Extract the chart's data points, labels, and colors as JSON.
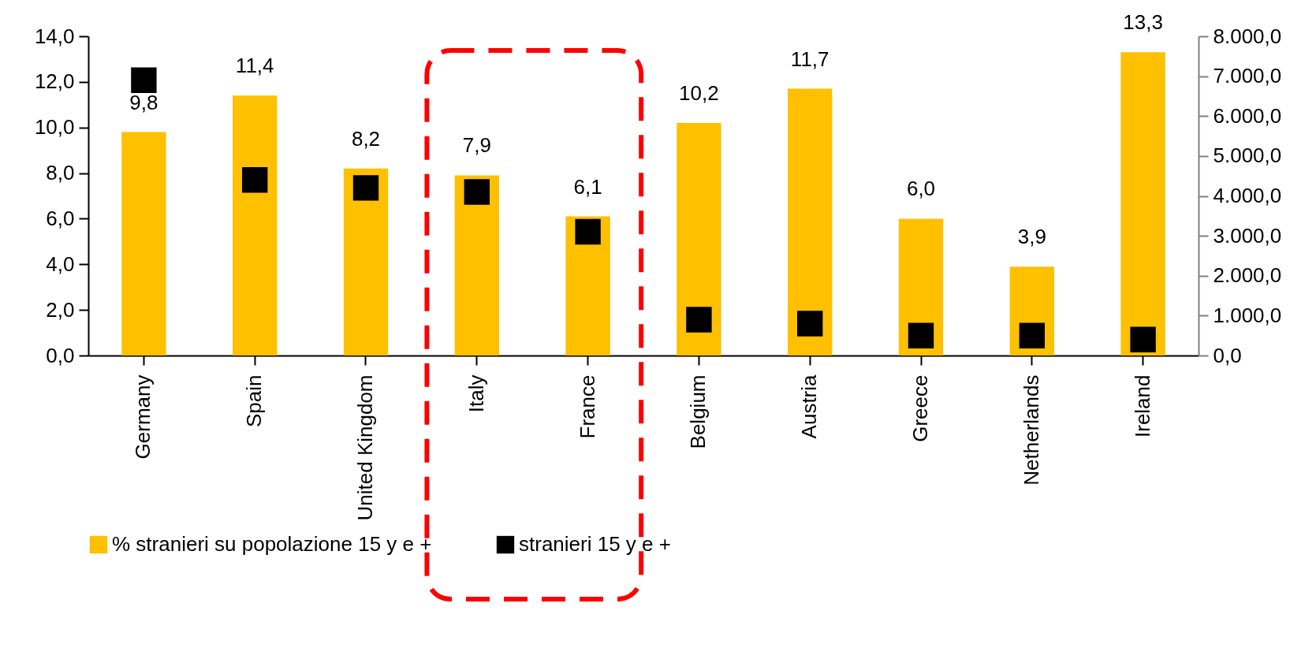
{
  "chart_data": {
    "type": "bar",
    "categories": [
      "Germany",
      "Spain",
      "United Kingdom",
      "Italy",
      "France",
      "Belgium",
      "Austria",
      "Greece",
      "Netherlands",
      "Ireland"
    ],
    "series": [
      {
        "name": "% stranieri su popolazione 15 y e +",
        "color": "#ffc000",
        "values": [
          9.8,
          11.4,
          8.2,
          7.9,
          6.1,
          10.2,
          11.7,
          6.0,
          3.9,
          13.3
        ],
        "value_labels": [
          "9,8",
          "11,4",
          "8,2",
          "7,9",
          "6,1",
          "10,2",
          "11,7",
          "6,0",
          "3,9",
          "13,3"
        ]
      },
      {
        "name": "stranieri 15 y e +",
        "type": "scatter",
        "axis": "y2",
        "marker": "square",
        "color": "#000000",
        "values": [
          6900,
          4400,
          4200,
          4100,
          3100,
          900,
          800,
          500,
          500,
          400
        ]
      }
    ],
    "ylim": [
      0,
      14
    ],
    "yticks": [
      {
        "value": 0,
        "label": "0,0"
      },
      {
        "value": 2,
        "label": "2,0"
      },
      {
        "value": 4,
        "label": "4,0"
      },
      {
        "value": 6,
        "label": "6,0"
      },
      {
        "value": 8,
        "label": "8,0"
      },
      {
        "value": 10,
        "label": "10,0"
      },
      {
        "value": 12,
        "label": "12,0"
      },
      {
        "value": 14,
        "label": "14,0"
      }
    ],
    "y2lim": [
      0,
      8000
    ],
    "y2ticks": [
      {
        "value": 0,
        "label": "0,0"
      },
      {
        "value": 1000,
        "label": "1.000,0"
      },
      {
        "value": 2000,
        "label": "2.000,0"
      },
      {
        "value": 3000,
        "label": "3.000,0"
      },
      {
        "value": 4000,
        "label": "4.000,0"
      },
      {
        "value": 5000,
        "label": "5.000,0"
      },
      {
        "value": 6000,
        "label": "6.000,0"
      },
      {
        "value": 7000,
        "label": "7.000,0"
      },
      {
        "value": 8000,
        "label": "8.000,0"
      }
    ],
    "legend": "bottom"
  }
}
